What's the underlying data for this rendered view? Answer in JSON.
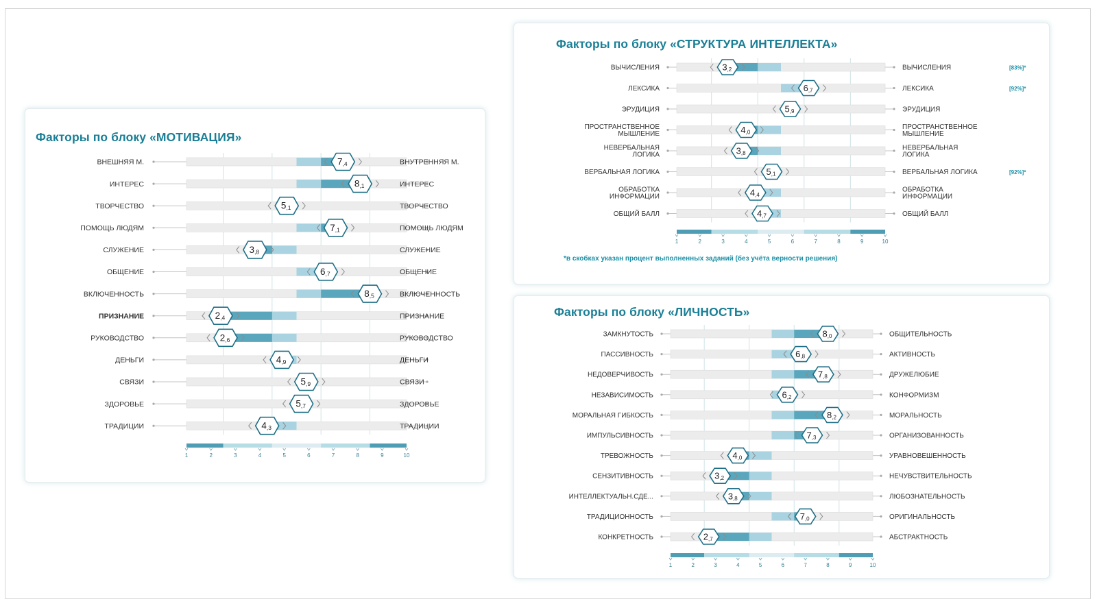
{
  "colors": {
    "accent": "#1a7f96",
    "band_dark": "#5aa7bd",
    "band_light": "#a9d3e1",
    "track": "#ececec",
    "hexagon_stroke": "#1f6f86",
    "grid": "#cfe3e6",
    "scale_dark": "#4f9db4",
    "scale_light": "#b6dce6"
  },
  "motivation": {
    "title": "Факторы по блоку «МОТИВАЦИЯ»"
  },
  "intellect": {
    "title": "Факторы по блоку «СТРУКТУРА ИНТЕЛЛЕКТА»",
    "footnote": "*в скобках указан процент выполненных заданий (без учёта верности решения)"
  },
  "personality": {
    "title": "Факторы по блоку «ЛИЧНОСТЬ»"
  },
  "chart_data": [
    {
      "id": "motivation",
      "type": "scale_profile",
      "title": "Факторы по блоку «МОТИВАЦИЯ»",
      "xlim": [
        1,
        10
      ],
      "ticks": [
        "1",
        "2",
        "3",
        "4",
        "5",
        "6",
        "7",
        "8",
        "9",
        "10"
      ],
      "rows": [
        {
          "left": "ВНЕШНЯЯ М.",
          "right": "ВНУТРЕННЯЯ М.",
          "value": 7.4,
          "int": "7",
          "dec": ",4"
        },
        {
          "left": "ИНТЕРЕС",
          "right": "ИНТЕРЕС",
          "value": 8.1,
          "int": "8",
          "dec": ",1"
        },
        {
          "left": "ТВОРЧЕСТВО",
          "right": "ТВОРЧЕСТВО",
          "value": 5.1,
          "int": "5",
          "dec": ",1"
        },
        {
          "left": "ПОМОЩЬ ЛЮДЯМ",
          "right": "ПОМОЩЬ ЛЮДЯМ",
          "value": 7.1,
          "int": "7",
          "dec": ",1"
        },
        {
          "left": "СЛУЖЕНИЕ",
          "right": "СЛУЖЕНИЕ",
          "value": 3.8,
          "int": "3",
          "dec": ",8"
        },
        {
          "left": "ОБЩЕНИЕ",
          "right": "ОБЩЕНИЕ",
          "value": 6.7,
          "int": "6",
          "dec": ",7"
        },
        {
          "left": "ВКЛЮЧЕННОСТЬ",
          "right": "ВКЛЮЧЕННОСТЬ",
          "value": 8.5,
          "int": "8",
          "dec": ",5"
        },
        {
          "left": "ПРИЗНАНИЕ",
          "right": "ПРИЗНАНИЕ",
          "value": 2.4,
          "int": "2",
          "dec": ",4",
          "bold": true
        },
        {
          "left": "РУКОВОДСТВО",
          "right": "РУКОВОДСТВО",
          "value": 2.6,
          "int": "2",
          "dec": ",6"
        },
        {
          "left": "ДЕНЬГИ",
          "right": "ДЕНЬГИ",
          "value": 4.9,
          "int": "4",
          "dec": ",9"
        },
        {
          "left": "СВЯЗИ",
          "right": "СВЯЗИ",
          "value": 5.9,
          "int": "5",
          "dec": ",9"
        },
        {
          "left": "ЗДОРОВЬЕ",
          "right": "ЗДОРОВЬЕ",
          "value": 5.7,
          "int": "5",
          "dec": ",7"
        },
        {
          "left": "ТРАДИЦИИ",
          "right": "ТРАДИЦИИ",
          "value": 4.3,
          "int": "4",
          "dec": ",3"
        }
      ]
    },
    {
      "id": "intellect",
      "type": "scale_profile",
      "title": "Факторы по блоку «СТРУКТУРА ИНТЕЛЛЕКТА»",
      "xlim": [
        1,
        10
      ],
      "ticks": [
        "1",
        "2",
        "3",
        "4",
        "5",
        "6",
        "7",
        "8",
        "9",
        "10"
      ],
      "rows": [
        {
          "left": "ВЫЧИСЛЕНИЯ",
          "right": "ВЫЧИСЛЕНИЯ",
          "value": 3.2,
          "int": "3",
          "dec": ",2",
          "pct": "[83%]*"
        },
        {
          "left": "ЛЕКСИКА",
          "right": "ЛЕКСИКА",
          "value": 6.7,
          "int": "6",
          "dec": ",7",
          "pct": "[92%]*"
        },
        {
          "left": "ЭРУДИЦИЯ",
          "right": "ЭРУДИЦИЯ",
          "value": 5.9,
          "int": "5",
          "dec": ",9"
        },
        {
          "left": "ПРОСТРАНСТВЕННОЕ\nМЫШЛЕНИЕ",
          "right": "ПРОСТРАНСТВЕННОЕ\nМЫШЛЕНИЕ",
          "value": 4.0,
          "int": "4",
          "dec": ",0"
        },
        {
          "left": "НЕВЕРБАЛЬНАЯ\nЛОГИКА",
          "right": "НЕВЕРБАЛЬНАЯ\nЛОГИКА",
          "value": 3.8,
          "int": "3",
          "dec": ",8"
        },
        {
          "left": "ВЕРБАЛЬНАЯ ЛОГИКА",
          "right": "ВЕРБАЛЬНАЯ ЛОГИКА",
          "value": 5.1,
          "int": "5",
          "dec": ",1",
          "pct": "[92%]*"
        },
        {
          "left": "ОБРАБОТКА\nИНФОРМАЦИИ",
          "right": "ОБРАБОТКА\nИНФОРМАЦИИ",
          "value": 4.4,
          "int": "4",
          "dec": ",4"
        },
        {
          "left": "ОБЩИЙ БАЛЛ",
          "right": "ОБЩИЙ БАЛЛ",
          "value": 4.7,
          "int": "4",
          "dec": ",7"
        }
      ]
    },
    {
      "id": "personality",
      "type": "scale_profile",
      "title": "Факторы по блоку «ЛИЧНОСТЬ»",
      "xlim": [
        1,
        10
      ],
      "ticks": [
        "1",
        "2",
        "3",
        "4",
        "5",
        "6",
        "7",
        "8",
        "9",
        "10"
      ],
      "rows": [
        {
          "left": "ЗАМКНУТОСТЬ",
          "right": "ОБЩИТЕЛЬНОСТЬ",
          "value": 8.0,
          "int": "8",
          "dec": ",0"
        },
        {
          "left": "ПАССИВНОСТЬ",
          "right": "АКТИВНОСТЬ",
          "value": 6.8,
          "int": "6",
          "dec": ",8"
        },
        {
          "left": "НЕДОВЕРЧИВОСТЬ",
          "right": "ДРУЖЕЛЮБИЕ",
          "value": 7.8,
          "int": "7",
          "dec": ",8"
        },
        {
          "left": "НЕЗАВИСИМОСТЬ",
          "right": "КОНФОРМИЗМ",
          "value": 6.2,
          "int": "6",
          "dec": ",2"
        },
        {
          "left": "МОРАЛЬНАЯ ГИБКОСТЬ",
          "right": "МОРАЛЬНОСТЬ",
          "value": 8.2,
          "int": "8",
          "dec": ",2"
        },
        {
          "left": "ИМПУЛЬСИВНОСТЬ",
          "right": "ОРГАНИЗОВАННОСТЬ",
          "value": 7.3,
          "int": "7",
          "dec": ",3"
        },
        {
          "left": "ТРЕВОЖНОСТЬ",
          "right": "УРАВНОВЕШЕННОСТЬ",
          "value": 4.0,
          "int": "4",
          "dec": ",0"
        },
        {
          "left": "СЕНЗИТИВНОСТЬ",
          "right": "НЕЧУВСТВИТЕЛЬНОСТЬ",
          "value": 3.2,
          "int": "3",
          "dec": ",2"
        },
        {
          "left": "ИНТЕЛЛЕКТУАЛЬН.СДЕ...",
          "right": "ЛЮБОЗНАТЕЛЬНОСТЬ",
          "value": 3.8,
          "int": "3",
          "dec": ",8"
        },
        {
          "left": "ТРАДИЦИОННОСТЬ",
          "right": "ОРИГИНАЛЬНОСТЬ",
          "value": 7.0,
          "int": "7",
          "dec": ",0"
        },
        {
          "left": "КОНКРЕТНОСТЬ",
          "right": "АБСТРАКТНОСТЬ",
          "value": 2.7,
          "int": "2",
          "dec": ",7"
        }
      ]
    }
  ]
}
